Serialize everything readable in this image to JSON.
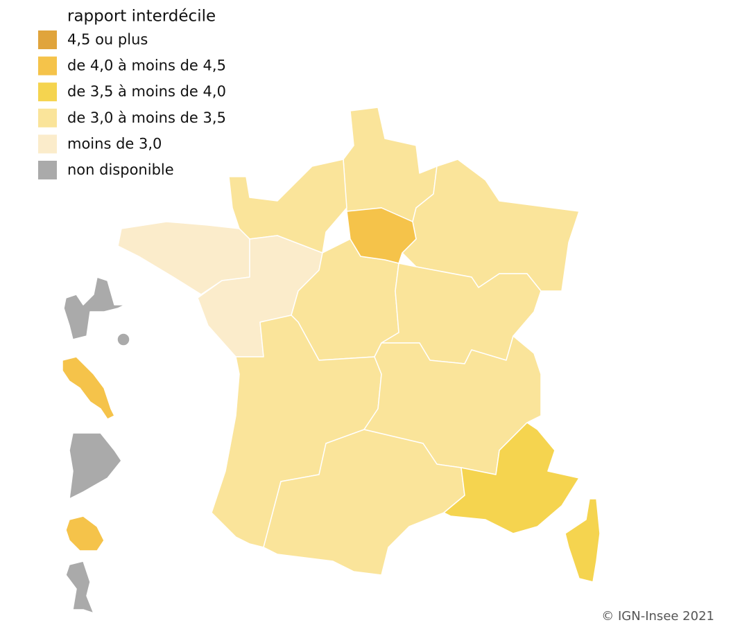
{
  "legend": {
    "title": "rapport interdécile",
    "items": [
      {
        "label": "4,5 ou plus",
        "color": "#e0a43c"
      },
      {
        "label": "de 4,0 à moins de 4,5",
        "color": "#f5c34a"
      },
      {
        "label": "de 3,5 à moins de 4,0",
        "color": "#f5d44f"
      },
      {
        "label": "de 3,0 à moins de 3,5",
        "color": "#fae49a"
      },
      {
        "label": "moins de 3,0",
        "color": "#fbeccb"
      },
      {
        "label": "non disponible",
        "color": "#aaaaaa"
      }
    ]
  },
  "credit": "© IGN-Insee 2021"
}
